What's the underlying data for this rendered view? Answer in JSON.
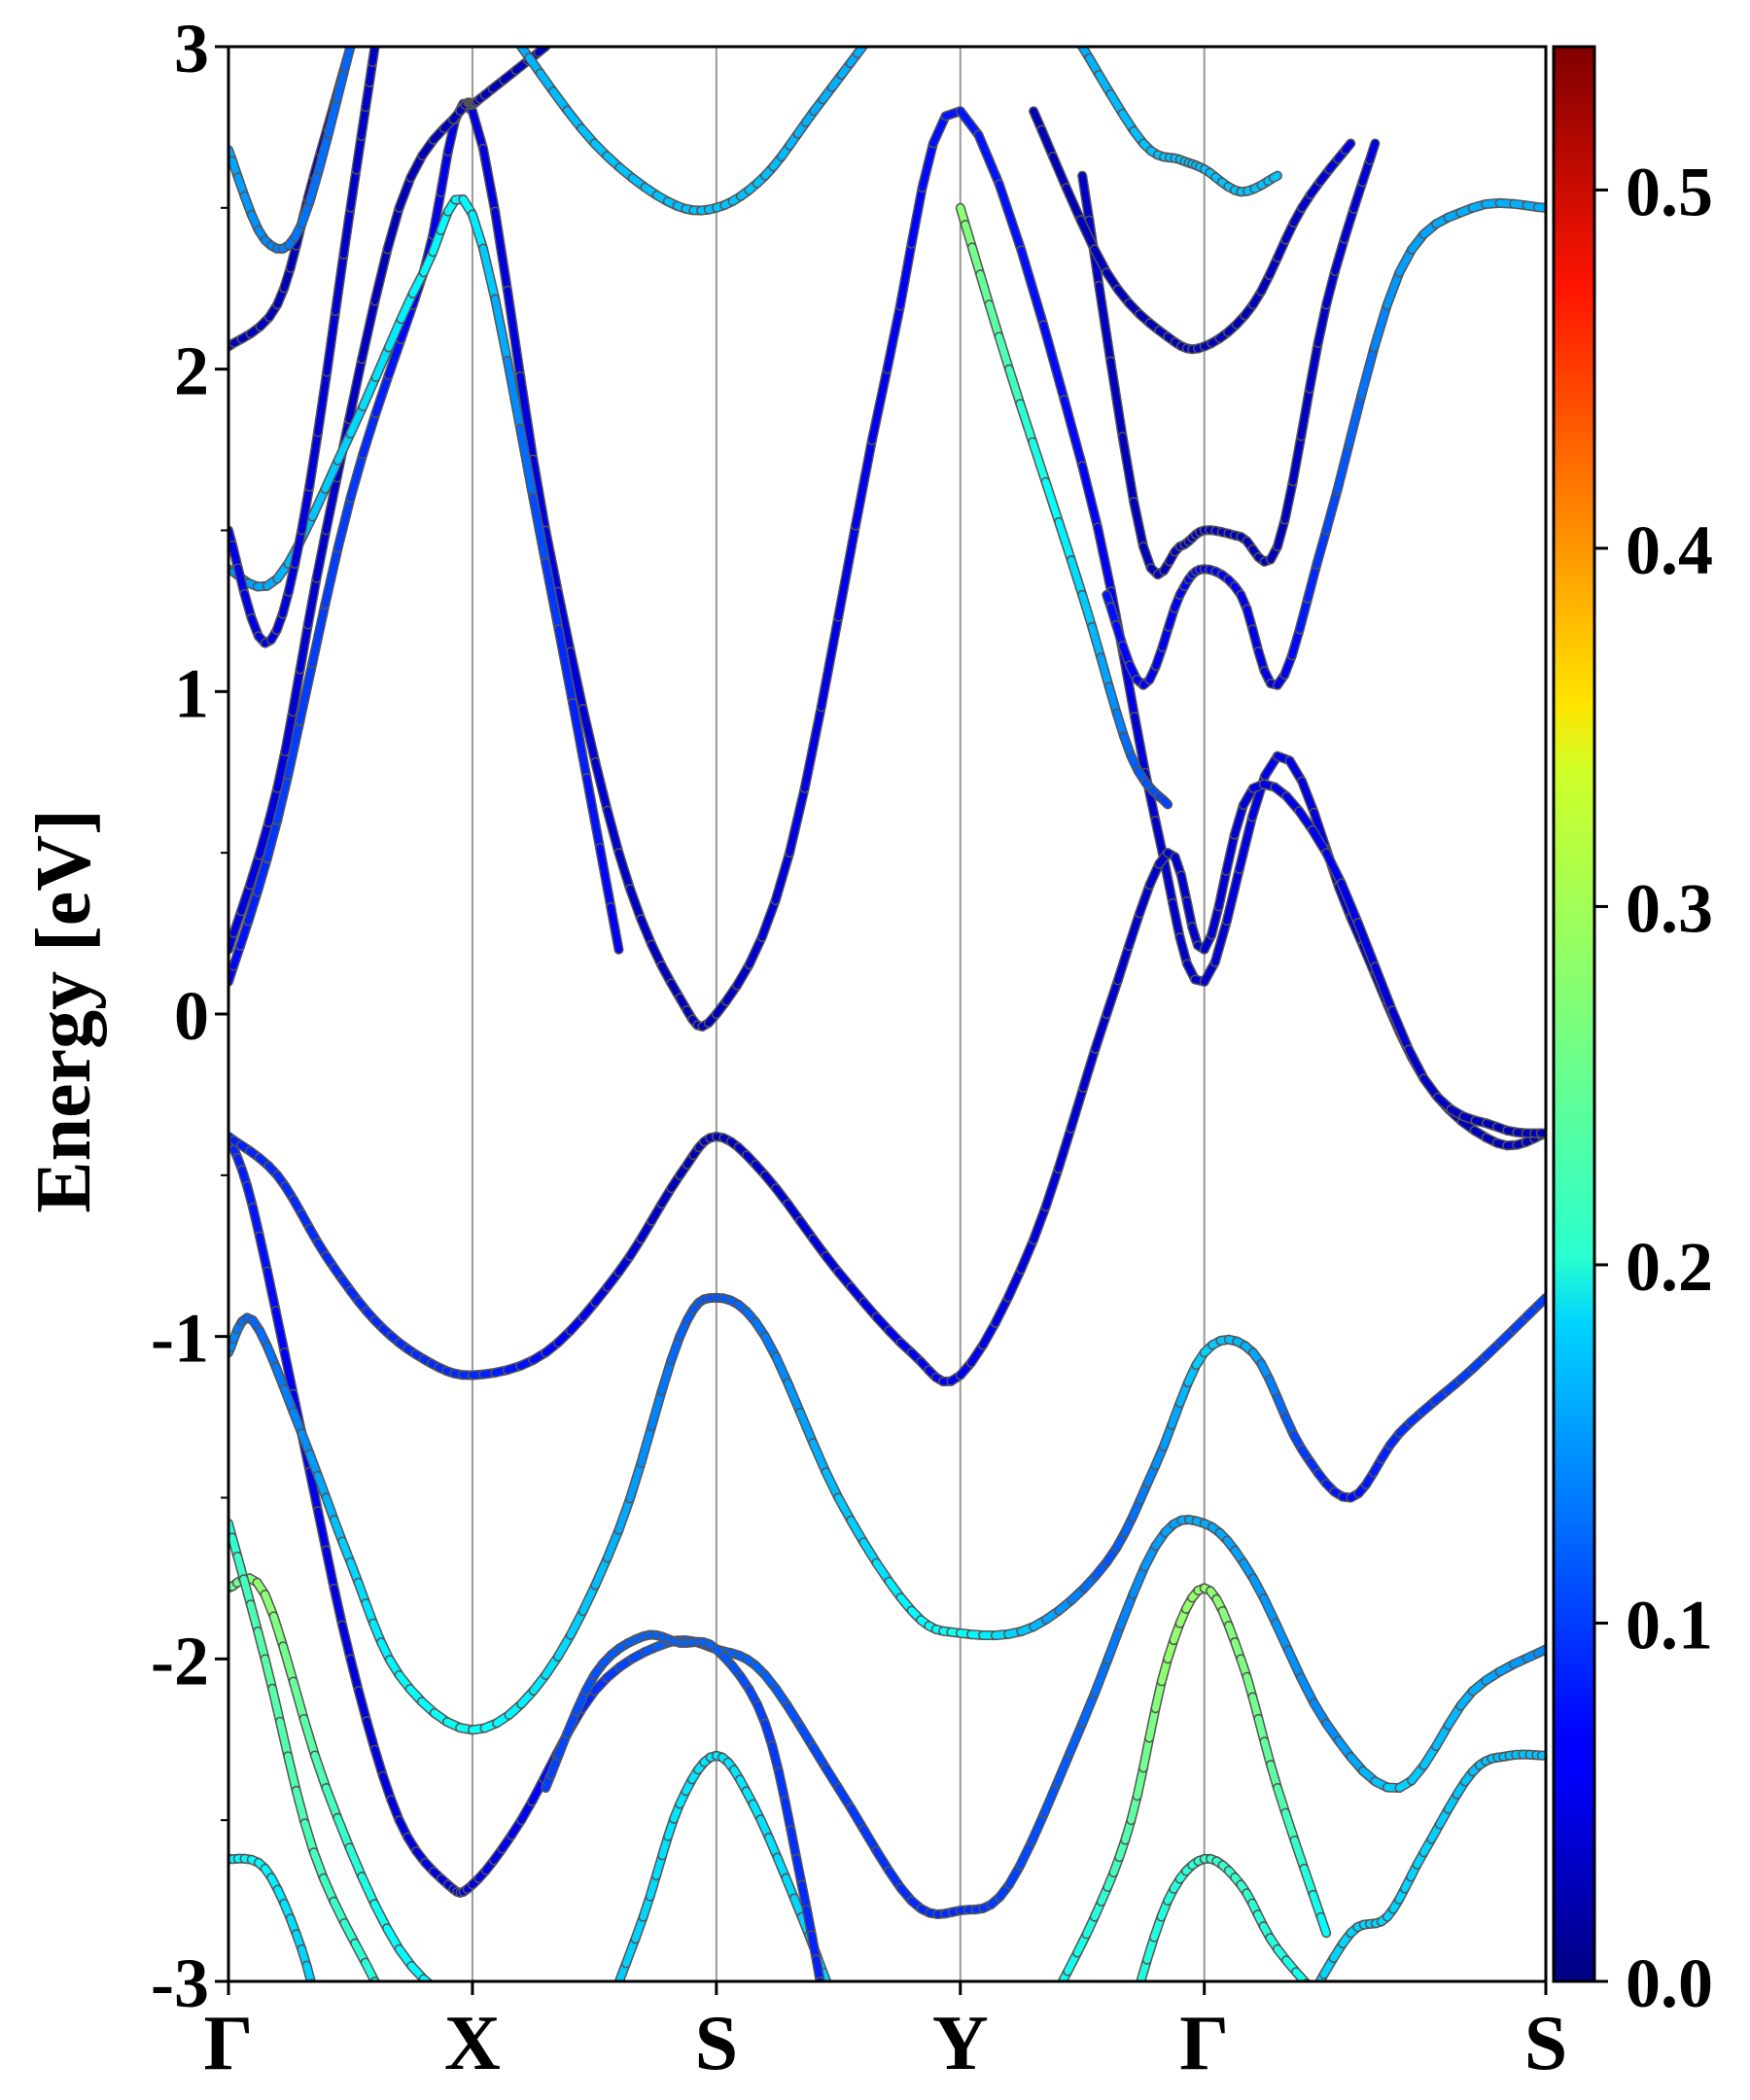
{
  "chart_data": {
    "type": "line",
    "title": "",
    "xlabel": "",
    "ylabel": "Energy [eV]",
    "ylim": [
      -3,
      3
    ],
    "yticks": [
      "3",
      "2",
      "1",
      "0",
      "-1",
      "-2",
      "-3"
    ],
    "ytick_values": [
      3,
      2,
      1,
      0,
      -1,
      -2,
      -3
    ],
    "kpath": [
      {
        "label": "Γ",
        "x": 0.0
      },
      {
        "label": "X",
        "x": 1.0
      },
      {
        "label": "S",
        "x": 2.0
      },
      {
        "label": "Y",
        "x": 3.0
      },
      {
        "label": "Γ",
        "x": 4.0
      },
      {
        "label": "S",
        "x": 5.4
      }
    ],
    "xlim": [
      0,
      5.4
    ],
    "grid": "vertical lines at high-symmetry points",
    "colorbar": {
      "colormap": "jet",
      "range": [
        0.0,
        0.54
      ],
      "tick_labels": [
        "0.0",
        "0.1",
        "0.2",
        "0.3",
        "0.4",
        "0.5"
      ],
      "tick_values": [
        0.0,
        0.1,
        0.2,
        0.3,
        0.4,
        0.5
      ]
    },
    "series": [
      {
        "x": [
          0,
          0.2,
          0.5,
          0.8,
          1.0,
          1.3,
          1.6,
          1.85,
          2.0,
          2.3,
          2.7,
          3.0,
          3.5,
          3.8,
          4.0,
          4.3,
          4.6,
          4.9,
          5.2,
          5.4
        ],
        "y": [
          0.1,
          0.6,
          1.6,
          2.3,
          2.8,
          1.5,
          0.5,
          0.05,
          0.0,
          0.5,
          2.0,
          2.8,
          1.7,
          0.6,
          0.1,
          0.8,
          0.3,
          -0.2,
          -0.4,
          -0.37
        ],
        "weight": [
          0.06,
          0.1,
          0.1,
          0.06,
          0.05,
          0.05,
          0.04,
          0.03,
          0.03,
          0.05,
          0.06,
          0.08,
          0.07,
          0.04,
          0.04,
          0.06,
          0.04,
          0.03,
          0.03,
          0.03
        ]
      },
      {
        "x": [
          0,
          0.2,
          0.4,
          0.7,
          0.95,
          1.0,
          1.05,
          1.3
        ],
        "y": [
          0.2,
          0.7,
          1.5,
          2.5,
          2.8,
          2.82,
          2.85,
          3.0
        ],
        "weight": [
          0.05,
          0.05,
          0.04,
          0.03,
          0.03,
          0.03,
          0.03,
          0.03
        ]
      },
      {
        "x": [
          0,
          0.1,
          0.3,
          0.5,
          0.7,
          0.9,
          1.0,
          1.2,
          1.5,
          1.8,
          2.0,
          2.2,
          2.5,
          2.8,
          3.0,
          3.2,
          3.5,
          3.8,
          4.0,
          4.2,
          4.5,
          4.8,
          5.1,
          5.4
        ],
        "y": [
          -0.38,
          -0.6,
          -1.3,
          -2.0,
          -2.5,
          -2.7,
          -2.7,
          -2.5,
          -2.1,
          -1.95,
          -1.97,
          -2.05,
          -2.4,
          -2.75,
          -2.78,
          -2.7,
          -2.2,
          -1.65,
          -1.58,
          -1.75,
          -2.2,
          -2.4,
          -2.1,
          -1.97
        ],
        "weight": [
          0.09,
          0.08,
          0.06,
          0.05,
          0.05,
          0.05,
          0.05,
          0.06,
          0.09,
          0.12,
          0.12,
          0.12,
          0.1,
          0.09,
          0.09,
          0.1,
          0.12,
          0.15,
          0.16,
          0.15,
          0.14,
          0.18,
          0.16,
          0.14
        ]
      },
      {
        "x": [
          0,
          0.2,
          0.4,
          0.6,
          0.8,
          1.0,
          1.3,
          1.6,
          1.85,
          2.0,
          2.2,
          2.5,
          2.8,
          3.0,
          3.3,
          3.6,
          3.85,
          4.0,
          4.2,
          4.5,
          4.9,
          5.2,
          5.4
        ],
        "y": [
          -0.38,
          -0.5,
          -0.75,
          -0.95,
          -1.07,
          -1.12,
          -1.05,
          -0.8,
          -0.5,
          -0.38,
          -0.5,
          -0.8,
          -1.05,
          -1.12,
          -0.7,
          0.0,
          0.5,
          0.2,
          0.7,
          0.5,
          -0.2,
          -0.35,
          -0.37
        ],
        "weight": [
          0.08,
          0.09,
          0.09,
          0.09,
          0.09,
          0.09,
          0.07,
          0.05,
          0.03,
          0.03,
          0.04,
          0.05,
          0.06,
          0.06,
          0.05,
          0.04,
          0.04,
          0.04,
          0.05,
          0.06,
          0.04,
          0.03,
          0.03
        ]
      },
      {
        "x": [
          0,
          0.1,
          0.3,
          0.5,
          0.7,
          1.0,
          1.3,
          1.6,
          1.85,
          2.0,
          2.2,
          2.5,
          2.8,
          3.0,
          3.3,
          3.6,
          3.8,
          4.0,
          4.2,
          4.4,
          4.6,
          4.8,
          5.1,
          5.4
        ],
        "y": [
          -1.05,
          -0.95,
          -1.3,
          -1.7,
          -2.05,
          -2.22,
          -2.05,
          -1.6,
          -1.0,
          -0.88,
          -1.0,
          -1.5,
          -1.85,
          -1.92,
          -1.9,
          -1.7,
          -1.4,
          -1.05,
          -1.05,
          -1.35,
          -1.5,
          -1.3,
          -1.1,
          -0.88
        ],
        "weight": [
          0.15,
          0.12,
          0.14,
          0.18,
          0.2,
          0.21,
          0.19,
          0.16,
          0.12,
          0.11,
          0.13,
          0.17,
          0.2,
          0.21,
          0.17,
          0.11,
          0.14,
          0.18,
          0.16,
          0.1,
          0.07,
          0.09,
          0.1,
          0.1
        ]
      },
      {
        "x": [
          0,
          0.15,
          0.4,
          0.7,
          1.0,
          1.3,
          1.6,
          2.0
        ],
        "y": [
          -1.78,
          -1.8,
          -2.4,
          -2.9,
          -3.1,
          -3.2,
          -3.3,
          -3.4
        ],
        "weight": [
          0.25,
          0.28,
          0.24,
          0.2,
          0.2,
          0.2,
          0.2,
          0.2
        ]
      },
      {
        "x": [
          0,
          0.15,
          0.35,
          0.6,
          0.8
        ],
        "y": [
          -1.58,
          -2.0,
          -2.6,
          -3.0,
          -3.3
        ],
        "weight": [
          0.22,
          0.25,
          0.24,
          0.22,
          0.2
        ]
      },
      {
        "x": [
          0,
          0.15,
          0.3,
          0.4
        ],
        "y": [
          -2.62,
          -2.65,
          -2.9,
          -3.2
        ],
        "weight": [
          0.2,
          0.2,
          0.18,
          0.18
        ]
      },
      {
        "x": [
          1.5,
          1.7,
          1.85,
          2.0,
          2.15,
          2.35,
          2.5
        ],
        "y": [
          -3.2,
          -2.8,
          -2.45,
          -2.3,
          -2.45,
          -2.8,
          -3.1
        ],
        "weight": [
          0.17,
          0.18,
          0.19,
          0.19,
          0.19,
          0.18,
          0.18
        ]
      },
      {
        "x": [
          1.3,
          1.5,
          1.7,
          1.85,
          2.0,
          2.2,
          2.35,
          2.45
        ],
        "y": [
          -2.4,
          -2.05,
          -1.93,
          -1.95,
          -1.97,
          -2.2,
          -2.7,
          -3.1
        ],
        "weight": [
          0.1,
          0.11,
          0.12,
          0.12,
          0.12,
          0.1,
          0.09,
          0.08
        ]
      },
      {
        "x": [
          3.35,
          3.55,
          3.7,
          3.85,
          4.0,
          4.15,
          4.3,
          4.5
        ],
        "y": [
          -3.1,
          -2.8,
          -2.5,
          -2.0,
          -1.78,
          -2.0,
          -2.4,
          -2.85
        ],
        "weight": [
          0.2,
          0.22,
          0.25,
          0.28,
          0.28,
          0.27,
          0.25,
          0.2
        ]
      },
      {
        "x": [
          3.7,
          3.85,
          4.0,
          4.15,
          4.3,
          4.55,
          4.8
        ],
        "y": [
          -3.1,
          -2.75,
          -2.62,
          -2.7,
          -2.9,
          -3.1,
          -3.2
        ],
        "weight": [
          0.22,
          0.22,
          0.23,
          0.23,
          0.22,
          0.2,
          0.2
        ]
      },
      {
        "x": [
          4.4,
          4.6,
          4.75,
          4.9,
          5.1,
          5.25,
          5.4
        ],
        "y": [
          -3.1,
          -2.85,
          -2.8,
          -2.6,
          -2.35,
          -2.3,
          -2.3
        ],
        "weight": [
          0.18,
          0.18,
          0.18,
          0.18,
          0.17,
          0.17,
          0.17
        ]
      },
      {
        "x": [
          0,
          0.2,
          0.5,
          0.8,
          1.0,
          1.3,
          1.6
        ],
        "y": [
          1.38,
          1.35,
          1.8,
          2.3,
          2.48,
          1.4,
          0.2
        ],
        "weight": [
          0.14,
          0.16,
          0.18,
          0.2,
          0.2,
          0.1,
          0.06
        ]
      },
      {
        "x": [
          0,
          0.15,
          0.3,
          0.5,
          0.6
        ],
        "y": [
          1.5,
          1.15,
          1.5,
          2.5,
          3.0
        ],
        "weight": [
          0.06,
          0.05,
          0.05,
          0.04,
          0.04
        ]
      },
      {
        "x": [
          0,
          0.2,
          0.35,
          0.5
        ],
        "y": [
          2.07,
          2.2,
          2.6,
          3.0
        ],
        "weight": [
          0.03,
          0.03,
          0.03,
          0.03
        ]
      },
      {
        "x": [
          0,
          0.15,
          0.3,
          0.5
        ],
        "y": [
          2.68,
          2.4,
          2.45,
          3.0
        ],
        "weight": [
          0.16,
          0.14,
          0.13,
          0.12
        ]
      },
      {
        "x": [
          1.2,
          1.5,
          1.8,
          2.0,
          2.2,
          2.4,
          2.6
        ],
        "y": [
          3.0,
          2.7,
          2.52,
          2.5,
          2.6,
          2.8,
          3.0
        ],
        "weight": [
          0.16,
          0.17,
          0.17,
          0.17,
          0.17,
          0.16,
          0.16
        ]
      },
      {
        "x": [
          3.0,
          3.2,
          3.5,
          3.7,
          3.85
        ],
        "y": [
          2.5,
          2.0,
          1.3,
          0.8,
          0.65
        ],
        "weight": [
          0.28,
          0.24,
          0.18,
          0.12,
          0.1
        ]
      },
      {
        "x": [
          3.6,
          3.75,
          3.9,
          4.0,
          4.15,
          4.3,
          4.5,
          4.8,
          5.1,
          5.4
        ],
        "y": [
          1.3,
          1.02,
          1.3,
          1.38,
          1.3,
          1.02,
          1.5,
          2.3,
          2.5,
          2.5
        ],
        "weight": [
          0.08,
          0.06,
          0.06,
          0.06,
          0.06,
          0.05,
          0.1,
          0.15,
          0.16,
          0.16
        ]
      },
      {
        "x": [
          3.5,
          3.75,
          3.9,
          4.0,
          4.15,
          4.3,
          4.5,
          4.7
        ],
        "y": [
          2.6,
          1.45,
          1.45,
          1.5,
          1.48,
          1.45,
          2.2,
          2.7
        ],
        "weight": [
          0.04,
          0.03,
          0.03,
          0.03,
          0.03,
          0.03,
          0.04,
          0.05
        ]
      },
      {
        "x": [
          3.3,
          3.6,
          3.85,
          4.0,
          4.2,
          4.4,
          4.6
        ],
        "y": [
          2.8,
          2.3,
          2.1,
          2.07,
          2.2,
          2.5,
          2.7
        ],
        "weight": [
          0.03,
          0.03,
          0.03,
          0.03,
          0.03,
          0.04,
          0.05
        ]
      },
      {
        "x": [
          3.5,
          3.75,
          3.9,
          4.0,
          4.15,
          4.3
        ],
        "y": [
          3.0,
          2.7,
          2.65,
          2.62,
          2.55,
          2.6
        ],
        "weight": [
          0.16,
          0.17,
          0.17,
          0.17,
          0.17,
          0.17
        ]
      }
    ]
  }
}
